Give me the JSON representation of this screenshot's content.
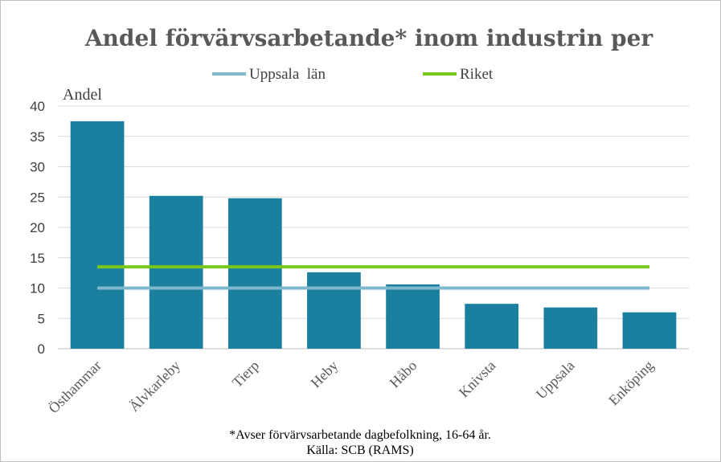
{
  "chart_data": {
    "type": "bar",
    "title": "Andel förvärvsarbetande* inom industrin per",
    "ylabel": "Andel",
    "xlabel": "",
    "ylim": [
      0,
      40
    ],
    "yticks": [
      0,
      5,
      10,
      15,
      20,
      25,
      30,
      35,
      40
    ],
    "categories": [
      "Östhammar",
      "Älvkarleby",
      "Tierp",
      "Heby",
      "Håbo",
      "Knivsta",
      "Uppsala",
      "Enköping"
    ],
    "series": [
      {
        "name": "Andel",
        "values": [
          37.5,
          25.2,
          24.8,
          12.6,
          10.6,
          7.4,
          6.8,
          6.0
        ],
        "color": "#1b80a0"
      }
    ],
    "reference_lines": [
      {
        "name": "Uppsala  län",
        "value": 10.0,
        "color": "#7fb7cc"
      },
      {
        "name": "Riket",
        "value": 13.5,
        "color": "#7ac71b"
      }
    ],
    "grid": true,
    "footnote": "*Avser förvärvsarbetande dagbefolkning, 16-64 år.",
    "source": "Källa: SCB (RAMS)"
  }
}
